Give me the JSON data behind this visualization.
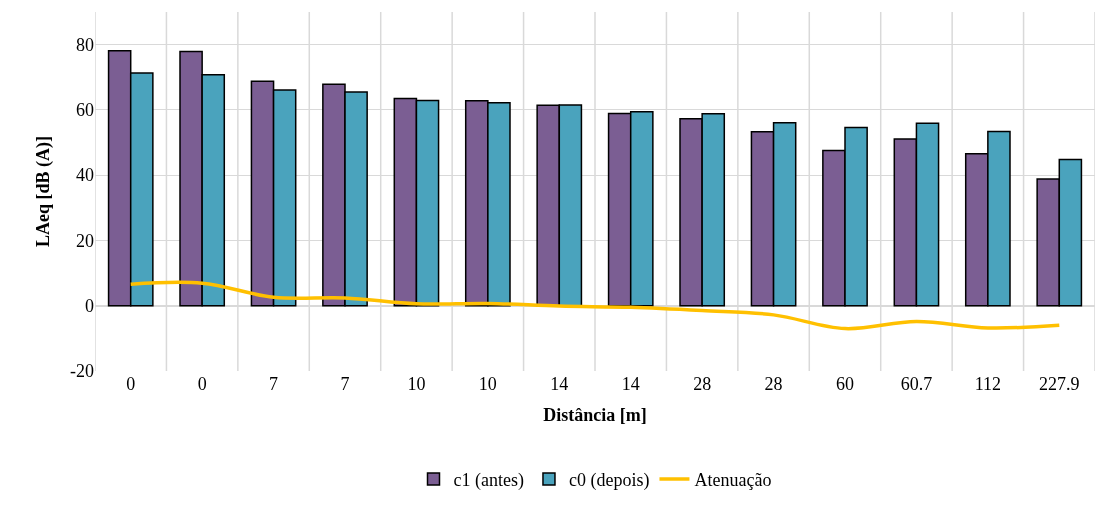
{
  "chart_data": {
    "type": "bar",
    "xlabel": "Distância [m]",
    "ylabel": "LAeq [dB (A)]",
    "categories": [
      "0",
      "0",
      "7",
      "7",
      "10",
      "10",
      "14",
      "14",
      "28",
      "28",
      "60",
      "60.7",
      "112",
      "227.9"
    ],
    "series": [
      {
        "name": "c1 (antes)",
        "color": "#7b5e93",
        "values": [
          78.1,
          77.9,
          68.8,
          67.9,
          63.5,
          62.8,
          61.4,
          58.9,
          57.3,
          53.3,
          47.6,
          51.1,
          46.6,
          38.8
        ]
      },
      {
        "name": "c0 (depois)",
        "color": "#4aa3bd",
        "values": [
          71.3,
          70.8,
          66.1,
          65.5,
          62.9,
          62.2,
          61.5,
          59.4,
          58.8,
          56.1,
          54.6,
          55.9,
          53.4,
          44.8
        ]
      },
      {
        "name": "Atenuação",
        "type": "line",
        "color": "#ffc000",
        "values": [
          6.6,
          6.9,
          2.6,
          2.4,
          0.6,
          0.7,
          -0.1,
          -0.5,
          -1.5,
          -2.8,
          -7.0,
          -4.8,
          -6.8,
          -6.0
        ]
      }
    ],
    "ylim": [
      -20,
      90
    ],
    "yticks": [
      -20,
      0,
      20,
      40,
      60,
      80
    ],
    "grid": true,
    "legend": "bottom"
  }
}
